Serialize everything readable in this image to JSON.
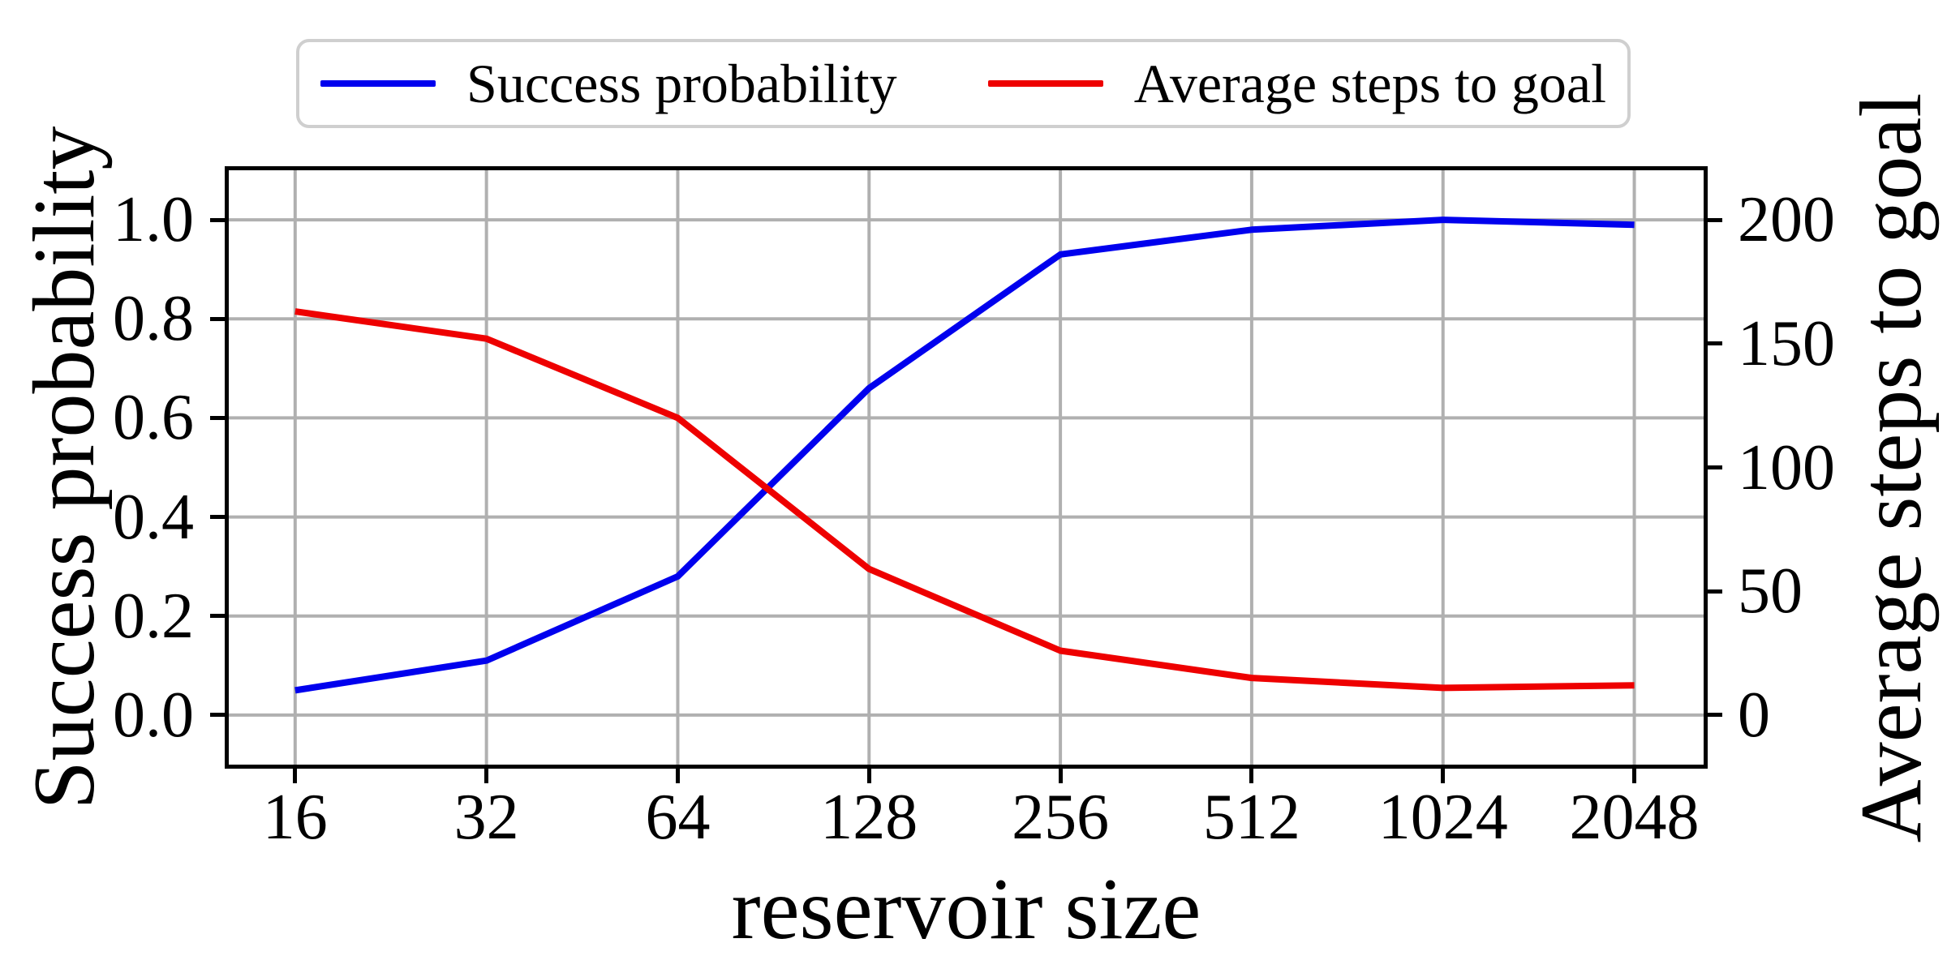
{
  "figure": {
    "xlabel": "reservoir size",
    "ylabel_left": "Success probability",
    "ylabel_right": "Average steps to goal",
    "legend": {
      "entries": [
        {
          "label": "Success probability",
          "color": "#0000ee"
        },
        {
          "label": "Average steps to goal",
          "color": "#ee0000"
        }
      ]
    }
  },
  "chart_data": {
    "type": "line",
    "title": "",
    "x_scale": "log2",
    "categories": [
      16,
      32,
      64,
      128,
      256,
      512,
      1024,
      2048
    ],
    "x_tick_labels": [
      "16",
      "32",
      "64",
      "128",
      "256",
      "512",
      "1024",
      "2048"
    ],
    "xlabel": "reservoir size",
    "series": [
      {
        "name": "Success probability",
        "axis": "left",
        "color": "#0000ee",
        "values": [
          0.05,
          0.11,
          0.28,
          0.66,
          0.93,
          0.98,
          1.0,
          0.99
        ]
      },
      {
        "name": "Average steps to goal",
        "axis": "right",
        "color": "#ee0000",
        "values": [
          163,
          152,
          120,
          59,
          26,
          15,
          11,
          12
        ]
      }
    ],
    "left_axis": {
      "label": "Success probability",
      "lim": [
        -0.1,
        1.1
      ],
      "ticks": [
        0.0,
        0.2,
        0.4,
        0.6,
        0.8,
        1.0
      ],
      "tick_labels": [
        "0.0",
        "0.2",
        "0.4",
        "0.6",
        "0.8",
        "1.0"
      ]
    },
    "right_axis": {
      "label": "Average steps to goal",
      "lim": [
        -20,
        220
      ],
      "ticks": [
        0,
        50,
        100,
        150,
        200
      ],
      "tick_labels": [
        "0",
        "50",
        "100",
        "150",
        "200"
      ]
    },
    "x_axis": {
      "start_frac": 0.045,
      "end_frac": 0.953
    },
    "grid": true,
    "grid_color": "#b0b0b0",
    "legend_position": "top"
  }
}
